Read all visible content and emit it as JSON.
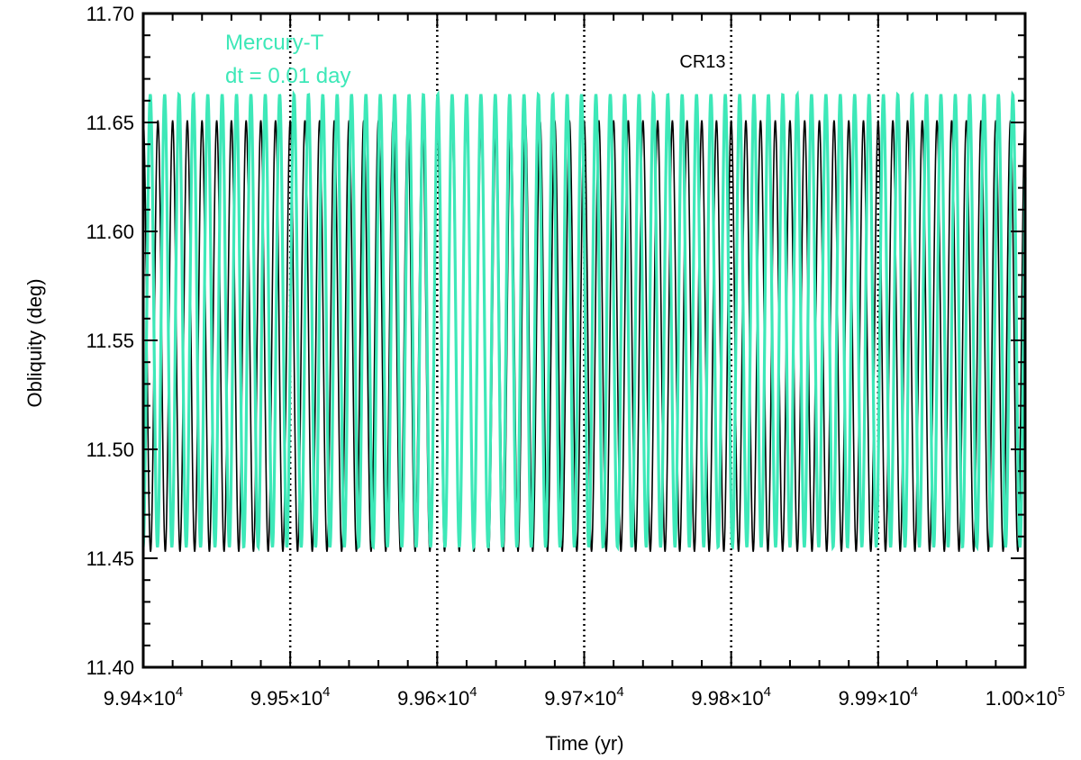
{
  "chart_data": {
    "type": "line",
    "xlabel": "Time (yr)",
    "ylabel": "Obliquity (deg)",
    "xlim": [
      99400,
      100000
    ],
    "ylim": [
      11.4,
      11.7
    ],
    "x_ticks": [
      {
        "mant": "9.94",
        "exp": "4"
      },
      {
        "mant": "9.95",
        "exp": "4"
      },
      {
        "mant": "9.96",
        "exp": "4"
      },
      {
        "mant": "9.97",
        "exp": "4"
      },
      {
        "mant": "9.98",
        "exp": "4"
      },
      {
        "mant": "9.99",
        "exp": "4"
      },
      {
        "mant": "1.00",
        "exp": "5"
      }
    ],
    "x_tick_values": [
      99400,
      99500,
      99600,
      99700,
      99800,
      99900,
      100000
    ],
    "y_ticks": [
      "11.40",
      "11.45",
      "11.50",
      "11.55",
      "11.60",
      "11.65",
      "11.70"
    ],
    "y_tick_values": [
      11.4,
      11.45,
      11.5,
      11.55,
      11.6,
      11.65,
      11.7
    ],
    "vertical_dotted_lines_x": [
      99500,
      99600,
      99700,
      99800,
      99900
    ],
    "annotations": [
      "CR13"
    ],
    "legend": {
      "line1": "Mercury-T",
      "line2": "dt = 0.01 day",
      "color": "#3de8b8"
    },
    "series": [
      {
        "color": "#000000",
        "min": 11.453,
        "max": 11.651,
        "period_yr": 10.0,
        "phase_x_at_max": 99400.0
      },
      {
        "color": "#3de8b8",
        "min": 11.455,
        "max": 11.663,
        "period_yr": 9.78,
        "phase_x_at_max": 99404.8
      }
    ]
  }
}
